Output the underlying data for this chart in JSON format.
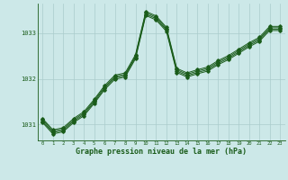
{
  "bg_color": "#cce8e8",
  "grid_color": "#aacccc",
  "line_color": "#1a5c1a",
  "marker_color": "#1a5c1a",
  "xlabel": "Graphe pression niveau de la mer (hPa)",
  "xlabel_fontsize": 6.0,
  "xlim": [
    -0.5,
    23.5
  ],
  "ylim": [
    1030.65,
    1033.65
  ],
  "yticks": [
    1031,
    1032,
    1033
  ],
  "xticks": [
    0,
    1,
    2,
    3,
    4,
    5,
    6,
    7,
    8,
    9,
    10,
    11,
    12,
    13,
    14,
    15,
    16,
    17,
    18,
    19,
    20,
    21,
    22,
    23
  ],
  "series1": {
    "x": [
      0,
      1,
      2,
      3,
      4,
      5,
      6,
      7,
      8,
      9,
      10,
      11,
      12,
      13,
      14,
      15,
      16,
      17,
      18,
      19,
      20,
      21,
      22,
      23
    ],
    "y": [
      1031.1,
      1030.85,
      1030.9,
      1031.1,
      1031.25,
      1031.52,
      1031.82,
      1032.05,
      1032.1,
      1032.5,
      1033.45,
      1033.35,
      1033.1,
      1032.2,
      1032.1,
      1032.17,
      1032.23,
      1032.37,
      1032.48,
      1032.62,
      1032.76,
      1032.88,
      1033.12,
      1033.12
    ]
  },
  "series2": {
    "x": [
      0,
      1,
      2,
      3,
      4,
      5,
      6,
      7,
      8,
      9,
      10,
      11,
      12,
      13,
      14,
      15,
      16,
      17,
      18,
      19,
      20,
      21,
      22,
      23
    ],
    "y": [
      1031.07,
      1030.82,
      1030.87,
      1031.07,
      1031.22,
      1031.49,
      1031.79,
      1032.02,
      1032.07,
      1032.47,
      1033.42,
      1033.32,
      1033.07,
      1032.17,
      1032.07,
      1032.14,
      1032.2,
      1032.34,
      1032.45,
      1032.59,
      1032.73,
      1032.85,
      1033.09,
      1033.09
    ]
  },
  "series3": {
    "x": [
      0,
      1,
      2,
      3,
      4,
      5,
      6,
      7,
      8,
      9,
      10,
      11,
      12,
      13,
      14,
      15,
      16,
      17,
      18,
      19,
      20,
      21,
      22,
      23
    ],
    "y": [
      1031.04,
      1030.79,
      1030.84,
      1031.04,
      1031.19,
      1031.46,
      1031.76,
      1031.99,
      1032.04,
      1032.44,
      1033.39,
      1033.29,
      1033.04,
      1032.14,
      1032.04,
      1032.11,
      1032.17,
      1032.31,
      1032.42,
      1032.56,
      1032.7,
      1032.82,
      1033.06,
      1033.06
    ]
  },
  "series4": {
    "x": [
      0,
      1,
      2,
      3,
      4,
      5,
      6,
      7,
      8,
      9,
      10,
      11,
      12,
      13,
      14,
      15,
      16,
      17,
      18,
      19,
      20,
      21,
      22,
      23
    ],
    "y": [
      1031.13,
      1030.88,
      1030.93,
      1031.13,
      1031.28,
      1031.55,
      1031.85,
      1032.08,
      1032.13,
      1032.53,
      1033.48,
      1033.38,
      1033.13,
      1032.23,
      1032.13,
      1032.2,
      1032.26,
      1032.4,
      1032.51,
      1032.65,
      1032.79,
      1032.91,
      1033.15,
      1033.15
    ]
  }
}
